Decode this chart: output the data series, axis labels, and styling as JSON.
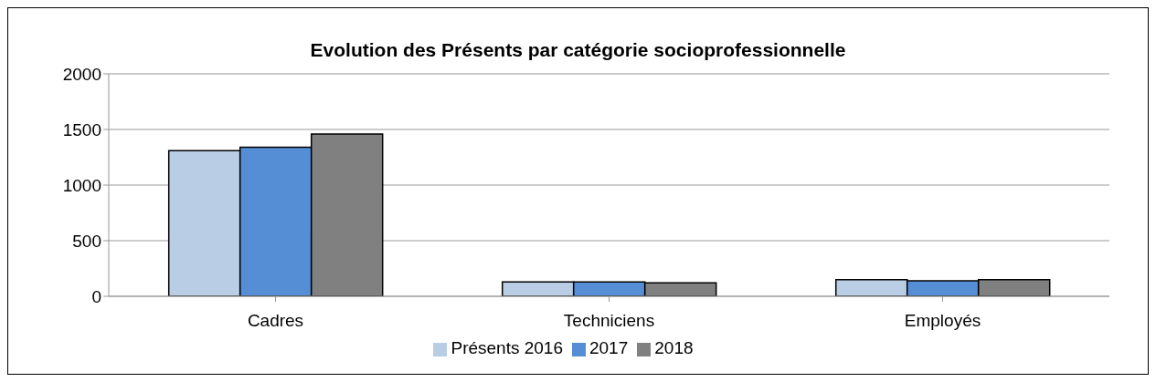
{
  "chart_data": {
    "type": "bar",
    "title": "Evolution des Présents par catégorie socioprofessionnelle",
    "categories": [
      "Cadres",
      "Techniciens",
      "Employés"
    ],
    "series": [
      {
        "name": "Présents 2016",
        "color": "#b9cde5",
        "values": [
          1310,
          130,
          150
        ]
      },
      {
        "name": "2017",
        "color": "#558ed5",
        "values": [
          1340,
          130,
          140
        ]
      },
      {
        "name": "2018",
        "color": "#808080",
        "values": [
          1460,
          120,
          150
        ]
      }
    ],
    "ylim": [
      0,
      2000
    ],
    "yticks": [
      0,
      500,
      1000,
      1500,
      2000
    ],
    "grid": "y",
    "legend": "bottom"
  }
}
